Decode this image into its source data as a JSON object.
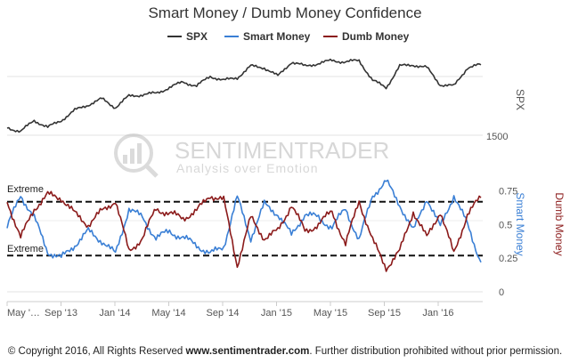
{
  "title": "Smart Money / Dumb Money Confidence",
  "legend": [
    {
      "label": "SPX",
      "color": "#333333"
    },
    {
      "label": "Smart Money",
      "color": "#3a7fd5"
    },
    {
      "label": "Dumb Money",
      "color": "#8b1a1a"
    }
  ],
  "watermark": {
    "line1": "SENTIMENTRADER",
    "line2": "Analysis over Emotion"
  },
  "extreme_labels": [
    "Extreme",
    "Extreme"
  ],
  "spx_axis": {
    "title": "SPX",
    "tick_label": "1500"
  },
  "smart_axis_title": "Smart Money",
  "dumb_axis_title": "Dumb Money",
  "copyright": {
    "prefix": "© Copyright 2016, All Rights Reserved ",
    "site": "www.sentimentrader.com",
    "suffix": ". Further distribution prohibited without prior permission."
  },
  "chart_data": {
    "type": "line",
    "title": "Smart Money / Dumb Money Confidence",
    "x_ticks": [
      "May '…",
      "Sep '13",
      "Jan '14",
      "May '14",
      "Sep '14",
      "Jan '15",
      "May '15",
      "Sep '15",
      "Jan '16"
    ],
    "x_range": [
      "2013-05",
      "2016-04"
    ],
    "confidence_axis": {
      "ticks": [
        "0",
        "0.25",
        "0.5",
        "0.75"
      ],
      "ylim": [
        0,
        0.88
      ],
      "extreme_levels": [
        0.27,
        0.67
      ]
    },
    "series": [
      {
        "name": "SPX",
        "axis": "spx",
        "x": [
          "2013-05",
          "2013-06",
          "2013-07",
          "2013-08",
          "2013-09",
          "2013-10",
          "2013-11",
          "2013-12",
          "2014-01",
          "2014-02",
          "2014-03",
          "2014-04",
          "2014-05",
          "2014-06",
          "2014-07",
          "2014-08",
          "2014-09",
          "2014-10",
          "2014-11",
          "2014-12",
          "2015-01",
          "2015-02",
          "2015-03",
          "2015-04",
          "2015-05",
          "2015-06",
          "2015-07",
          "2015-08",
          "2015-09",
          "2015-10",
          "2015-11",
          "2015-12",
          "2016-01",
          "2016-02",
          "2016-03",
          "2016-04"
        ],
        "values": [
          1640,
          1610,
          1690,
          1640,
          1690,
          1760,
          1800,
          1840,
          1780,
          1860,
          1870,
          1880,
          1920,
          1960,
          1930,
          2000,
          1970,
          1990,
          2070,
          2060,
          2000,
          2100,
          2070,
          2090,
          2110,
          2100,
          2110,
          1970,
          1920,
          2070,
          2080,
          2060,
          1940,
          1930,
          2060,
          2080
        ]
      },
      {
        "name": "Smart Money",
        "axis": "confidence",
        "x": [
          "2013-05",
          "2013-06",
          "2013-07",
          "2013-08",
          "2013-09",
          "2013-10",
          "2013-11",
          "2013-12",
          "2014-01",
          "2014-02",
          "2014-03",
          "2014-04",
          "2014-05",
          "2014-06",
          "2014-07",
          "2014-08",
          "2014-09",
          "2014-10",
          "2014-11",
          "2014-12",
          "2015-01",
          "2015-02",
          "2015-03",
          "2015-04",
          "2015-05",
          "2015-06",
          "2015-07",
          "2015-08",
          "2015-09",
          "2015-10",
          "2015-11",
          "2015-12",
          "2016-01",
          "2016-02",
          "2016-03",
          "2016-04"
        ],
        "values": [
          0.48,
          0.72,
          0.55,
          0.3,
          0.25,
          0.35,
          0.45,
          0.38,
          0.28,
          0.62,
          0.55,
          0.4,
          0.45,
          0.4,
          0.35,
          0.28,
          0.34,
          0.7,
          0.4,
          0.65,
          0.58,
          0.42,
          0.58,
          0.55,
          0.48,
          0.62,
          0.38,
          0.72,
          0.82,
          0.65,
          0.45,
          0.7,
          0.48,
          0.72,
          0.5,
          0.22
        ]
      },
      {
        "name": "Dumb Money",
        "axis": "confidence",
        "x": [
          "2013-05",
          "2013-06",
          "2013-07",
          "2013-08",
          "2013-09",
          "2013-10",
          "2013-11",
          "2013-12",
          "2014-01",
          "2014-02",
          "2014-03",
          "2014-04",
          "2014-05",
          "2014-06",
          "2014-07",
          "2014-08",
          "2014-09",
          "2014-10",
          "2014-11",
          "2014-12",
          "2015-01",
          "2015-02",
          "2015-03",
          "2015-04",
          "2015-05",
          "2015-06",
          "2015-07",
          "2015-08",
          "2015-09",
          "2015-10",
          "2015-11",
          "2015-12",
          "2016-01",
          "2016-02",
          "2016-03",
          "2016-04"
        ],
        "values": [
          0.68,
          0.4,
          0.62,
          0.72,
          0.7,
          0.58,
          0.5,
          0.6,
          0.68,
          0.3,
          0.4,
          0.62,
          0.58,
          0.55,
          0.6,
          0.72,
          0.68,
          0.2,
          0.55,
          0.4,
          0.45,
          0.65,
          0.45,
          0.5,
          0.6,
          0.35,
          0.68,
          0.38,
          0.18,
          0.3,
          0.6,
          0.4,
          0.6,
          0.28,
          0.58,
          0.7
        ]
      }
    ]
  }
}
